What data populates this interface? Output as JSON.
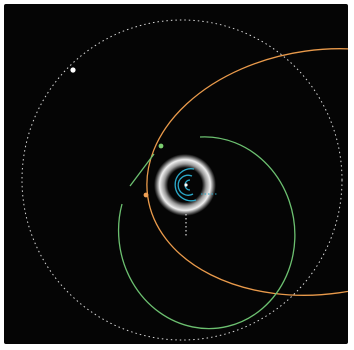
{
  "colors": {
    "background": "#050505",
    "page": "#ffffff",
    "orbit_dotted": "#d8d8d8",
    "orbit_orange": "#e99a4b",
    "orbit_green": "#6cc070",
    "inner_cyan": "#2aa8c8",
    "halo": "#dcdcdc",
    "planet_white": "#ffffff",
    "planet_orange": "#f0a055",
    "planet_green": "#7ccd70"
  },
  "objects": {
    "central_star": "central-star",
    "halo_ring": "halo-ring",
    "outer_orbit": "dotted-outer-orbit",
    "orange_orbit": "orange-orbit",
    "green_orbit": "green-orbit",
    "inner_system": "cyan-inner-orbits",
    "planets": [
      "white-planet",
      "orange-planet",
      "green-planet"
    ]
  }
}
